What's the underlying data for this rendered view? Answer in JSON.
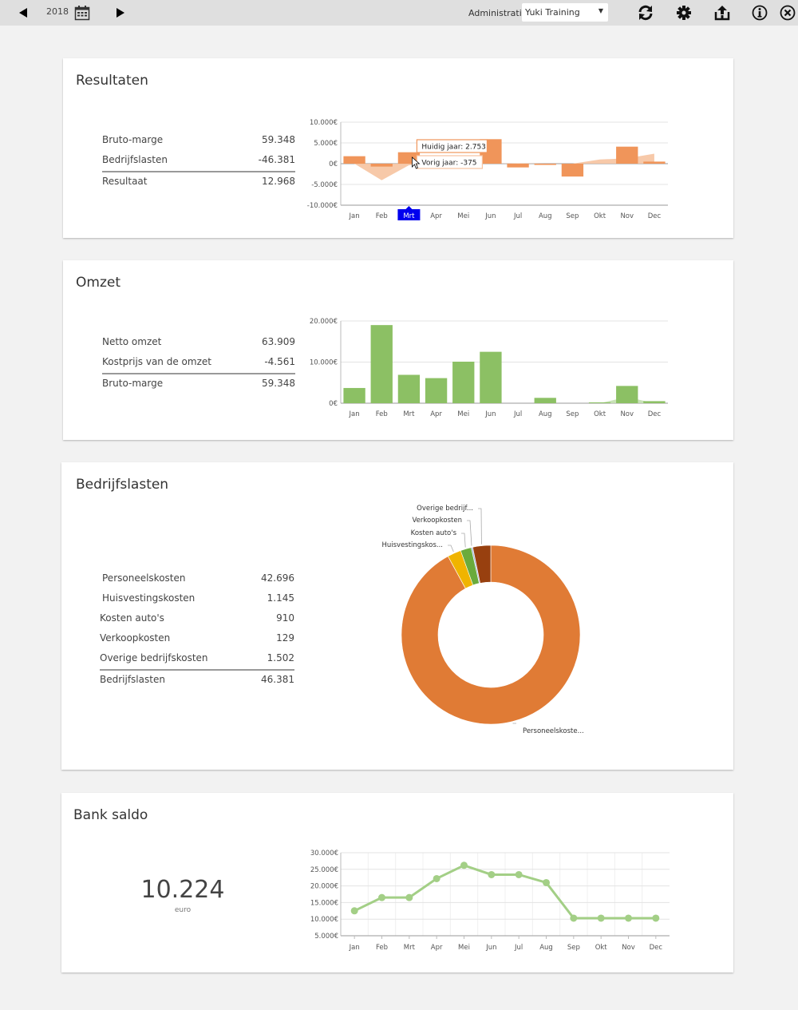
{
  "topbar": {
    "prev_icon": "triangle-left-icon",
    "year": "2018",
    "calendar_icon": "calendar-icon",
    "next_icon": "triangle-right-icon",
    "admin_label": "Administratie:",
    "admin_value": "Yuki Training",
    "icons": [
      "refresh-icon",
      "gear-icon",
      "share-icon",
      "info-icon",
      "close-icon"
    ]
  },
  "months": [
    "Jan",
    "Feb",
    "Mrt",
    "Apr",
    "Mei",
    "Jun",
    "Jul",
    "Aug",
    "Sep",
    "Okt",
    "Nov",
    "Dec"
  ],
  "resultaten": {
    "title": "Resultaten",
    "rows": [
      {
        "label": "Bruto-marge",
        "value": "59.348"
      },
      {
        "label": "Bedrijfslasten",
        "value": "-46.381"
      }
    ],
    "total": {
      "label": "Resultaat",
      "value": "12.968"
    },
    "tooltip_current": "Huidig jaar: 2.753",
    "tooltip_previous": "Vorig jaar: -375",
    "selected_month": "Mrt"
  },
  "omzet": {
    "title": "Omzet",
    "rows": [
      {
        "label": "Netto omzet",
        "value": "63.909"
      },
      {
        "label": "Kostprijs van de omzet",
        "value": "-4.561"
      }
    ],
    "total": {
      "label": "Bruto-marge",
      "value": "59.348"
    }
  },
  "bedrijfslasten": {
    "title": "Bedrijfslasten",
    "rows": [
      {
        "label": "Personeelskosten",
        "value": "42.696"
      },
      {
        "label": "Huisvestingskosten",
        "value": "1.145"
      },
      {
        "label": "Kosten auto's",
        "value": "910"
      },
      {
        "label": "Verkoopkosten",
        "value": "129"
      },
      {
        "label": "Overige bedrijfskosten",
        "value": "1.502"
      }
    ],
    "total": {
      "label": "Bedrijfslasten",
      "value": "46.381"
    }
  },
  "bank": {
    "title": "Bank saldo",
    "amount": "10.224",
    "unit": "euro"
  },
  "chart_data": [
    {
      "type": "bar",
      "title": "Resultaten",
      "categories": [
        "Jan",
        "Feb",
        "Mrt",
        "Apr",
        "Mei",
        "Jun",
        "Jul",
        "Aug",
        "Sep",
        "Okt",
        "Nov",
        "Dec"
      ],
      "series": [
        {
          "name": "Huidig jaar",
          "type": "bar",
          "color": "#f0955a",
          "values": [
            1800,
            -700,
            2753,
            0,
            1800,
            5900,
            -900,
            -300,
            -3100,
            0,
            4100,
            500
          ]
        },
        {
          "name": "Vorig jaar",
          "type": "area",
          "color": "#f6c3a0",
          "values": [
            0,
            -4000,
            -375,
            0,
            0,
            0,
            100,
            0,
            0,
            1000,
            1300,
            2400
          ]
        }
      ],
      "ylim": [
        -10000,
        10000
      ],
      "yticks": [
        "10.000€",
        "5.000€",
        "0€",
        "-5.000€",
        "-10.000€"
      ],
      "ytick_values": [
        10000,
        5000,
        0,
        -5000,
        -10000
      ],
      "grid": true
    },
    {
      "type": "bar",
      "title": "Omzet",
      "categories": [
        "Jan",
        "Feb",
        "Mrt",
        "Apr",
        "Mei",
        "Jun",
        "Jul",
        "Aug",
        "Sep",
        "Okt",
        "Nov",
        "Dec"
      ],
      "series": [
        {
          "name": "Huidig jaar",
          "type": "bar",
          "color": "#8cc064",
          "values": [
            3700,
            19000,
            6900,
            6100,
            10100,
            12500,
            0,
            1300,
            0,
            200,
            4200,
            500
          ]
        },
        {
          "name": "Vorig jaar",
          "type": "area",
          "color": "#c2dfae",
          "values": [
            0,
            0,
            0,
            0,
            0,
            0,
            0,
            0,
            0,
            0,
            1500,
            0
          ]
        }
      ],
      "ylim": [
        0,
        20000
      ],
      "yticks": [
        "20.000€",
        "10.000€",
        "0€"
      ],
      "ytick_values": [
        20000,
        10000,
        0
      ],
      "grid": true
    },
    {
      "type": "pie",
      "title": "Bedrijfslasten",
      "labels": [
        "Personeelskoste...",
        "Huisvestingskos...",
        "Kosten auto's",
        "Verkoopkosten",
        "Overige bedrijf..."
      ],
      "values": [
        42696,
        1145,
        910,
        129,
        1502
      ],
      "colors": [
        "#e07b35",
        "#f0b400",
        "#6aab3c",
        "#9fb4d8",
        "#98400f"
      ]
    },
    {
      "type": "line",
      "title": "Bank saldo",
      "categories": [
        "Jan",
        "Feb",
        "Mrt",
        "Apr",
        "Mei",
        "Jun",
        "Jul",
        "Aug",
        "Sep",
        "Okt",
        "Nov",
        "Dec"
      ],
      "series": [
        {
          "name": "Bank saldo",
          "color": "#a3cf86",
          "values": [
            12500,
            16500,
            16500,
            22200,
            26200,
            23400,
            23400,
            21000,
            10300,
            10300,
            10300,
            10300
          ]
        }
      ],
      "ylim": [
        5000,
        30000
      ],
      "yticks": [
        "30.000€",
        "25.000€",
        "20.000€",
        "15.000€",
        "10.000€",
        "5.000€"
      ],
      "ytick_values": [
        30000,
        25000,
        20000,
        15000,
        10000,
        5000
      ],
      "grid": true
    }
  ]
}
